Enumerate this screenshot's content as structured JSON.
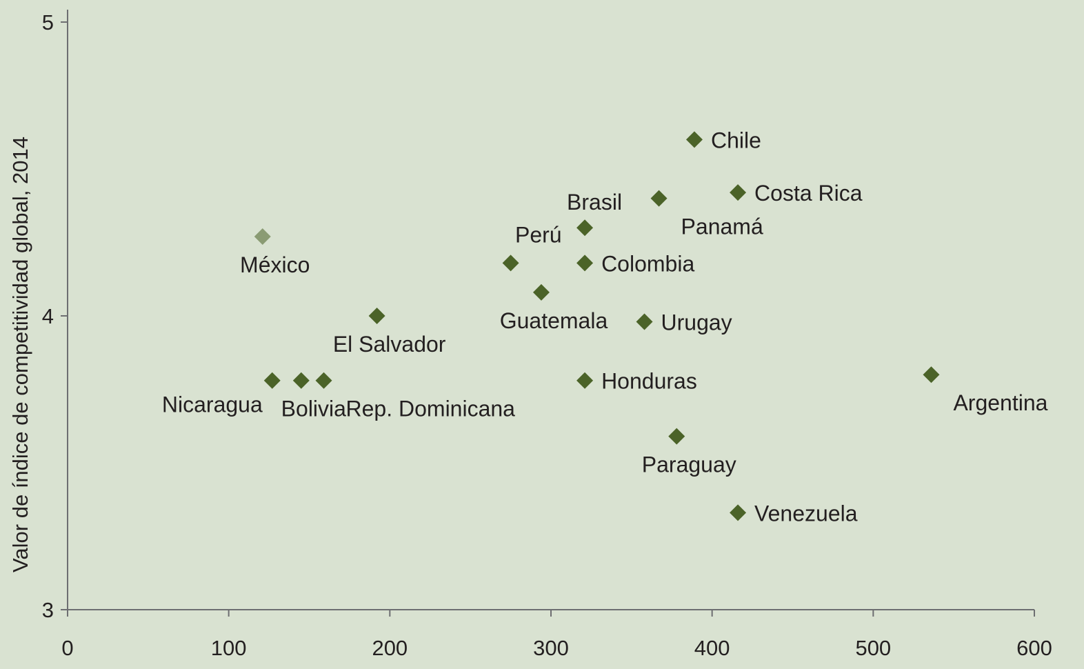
{
  "chart_data": {
    "type": "scatter",
    "title": "",
    "xlabel": "",
    "ylabel": "Valor de índice de competitividad global, 2014",
    "xlim": [
      0,
      600
    ],
    "ylim": [
      3,
      5
    ],
    "x_ticks": [
      "0",
      "100",
      "200",
      "300",
      "400",
      "500",
      "600"
    ],
    "y_ticks": [
      "3",
      "4",
      "5"
    ],
    "grid": false,
    "colors": {
      "background": "#d9e2d1",
      "marker": "#4b6328",
      "marker_highlight": "#8a9b73",
      "axis": "#6d6e71",
      "text": "#231f20"
    },
    "points": [
      {
        "label": "Chile",
        "x": 389,
        "y": 4.6,
        "label_pos": "right",
        "highlight": false
      },
      {
        "label": "Costa Rica",
        "x": 416,
        "y": 4.42,
        "label_pos": "right",
        "highlight": false
      },
      {
        "label": "Panamá",
        "x": 367,
        "y": 4.4,
        "label_pos": "below-right",
        "highlight": false
      },
      {
        "label": "Brasil",
        "x": 321,
        "y": 4.3,
        "label_pos": "above",
        "highlight": false
      },
      {
        "label": "Perú",
        "x": 275,
        "y": 4.18,
        "label_pos": "above-right",
        "highlight": false
      },
      {
        "label": "Colombia",
        "x": 321,
        "y": 4.18,
        "label_pos": "right",
        "highlight": false
      },
      {
        "label": "México",
        "x": 121,
        "y": 4.27,
        "label_pos": "below",
        "highlight": true
      },
      {
        "label": "Guatemala",
        "x": 294,
        "y": 4.08,
        "label_pos": "below",
        "highlight": false
      },
      {
        "label": "Urugay",
        "x": 358,
        "y": 3.98,
        "label_pos": "right",
        "highlight": false
      },
      {
        "label": "El Salvador",
        "x": 192,
        "y": 4.0,
        "label_pos": "below",
        "highlight": false
      },
      {
        "label": "Honduras",
        "x": 321,
        "y": 3.78,
        "label_pos": "right",
        "highlight": false
      },
      {
        "label": "Argentina",
        "x": 536,
        "y": 3.8,
        "label_pos": "below-right",
        "highlight": false
      },
      {
        "label": "Nicaragua",
        "x": 127,
        "y": 3.78,
        "label_pos": "below-left",
        "highlight": false
      },
      {
        "label": "Bolivia",
        "x": 145,
        "y": 3.78,
        "label_pos": "below",
        "highlight": false
      },
      {
        "label": "Rep. Dominicana",
        "x": 159,
        "y": 3.78,
        "label_pos": "below-right",
        "highlight": false
      },
      {
        "label": "Paraguay",
        "x": 378,
        "y": 3.59,
        "label_pos": "below",
        "highlight": false
      },
      {
        "label": "Venezuela",
        "x": 416,
        "y": 3.33,
        "label_pos": "right",
        "highlight": false
      }
    ]
  }
}
